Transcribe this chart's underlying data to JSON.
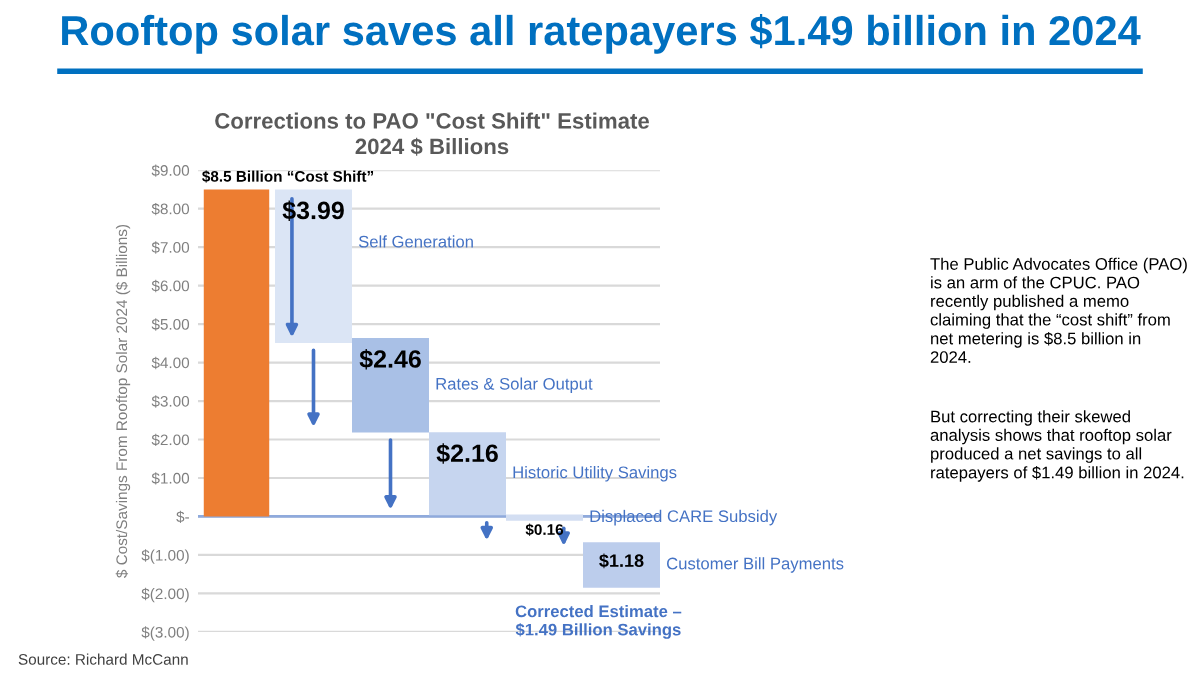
{
  "chart_data": {
    "type": "bar",
    "title": "Rooftop solar saves all ratepayers $1.49 billion in 2024",
    "subtitle": "Corrections to PAO \"Cost Shift\" Estimate\n2024 $ Billions",
    "ylabel": "$ Cost/Savings From Rooftop Solar 2024 ($ Billions)",
    "categories": [
      null,
      null,
      null,
      null,
      null,
      null
    ],
    "values": [
      8.5,
      3.99,
      2.46,
      2.16,
      0.16,
      1.18
    ],
    "base": [
      0,
      4.51,
      2.18,
      0.03,
      -0.11,
      -1.85
    ],
    "colors": [
      "#ed7d31",
      "#dbe5f5",
      "#a9c0e6",
      "#c6d5ef",
      "#d3def2",
      "#bccdec"
    ],
    "value_labels": [
      null,
      "$3.99",
      "$2.46",
      "$2.16",
      "$0.16",
      "$1.18"
    ],
    "ylim": [
      -3,
      9
    ],
    "yticks": [
      {
        "value": -3,
        "label": "$(3.00)"
      },
      {
        "value": -2,
        "label": "$(2.00)"
      },
      {
        "value": -1,
        "label": "$(1.00)"
      },
      {
        "value": 0,
        "label": "$-"
      },
      {
        "value": 1,
        "label": "$1.00"
      },
      {
        "value": 2,
        "label": "$2.00"
      },
      {
        "value": 3,
        "label": "$3.00"
      },
      {
        "value": 4,
        "label": "$4.00"
      },
      {
        "value": 5,
        "label": "$5.00"
      },
      {
        "value": 6,
        "label": "$6.00"
      },
      {
        "value": 7,
        "label": "$7.00"
      },
      {
        "value": 8,
        "label": "$8.00"
      },
      {
        "value": 9,
        "label": "$9.00"
      }
    ],
    "grid": "y",
    "ref_lines": [
      {
        "axis": "y",
        "value": 0,
        "color": "#8faadc"
      }
    ],
    "annotations": [
      "$8.5 Billion “Cost Shift”",
      "Self Generation",
      "Rates & Solar Output",
      "Historic Utility Savings",
      "Displaced CARE Subsidy",
      "Customer Bill Payments",
      "Corrected Estimate –\n$1.49 Billion Savings",
      "The Public Advocates Office (PAO)\nis an arm of the CPUC. PAO\nrecently published a memo\nclaiming that the “cost shift” from\nnet metering is $8.5 billion in\n2024.",
      "But correcting their skewed\nanalysis shows that rooftop solar\nproduced a net savings to all\nratepayers of $1.49 billion in 2024.",
      "Source: Richard McCann"
    ]
  }
}
